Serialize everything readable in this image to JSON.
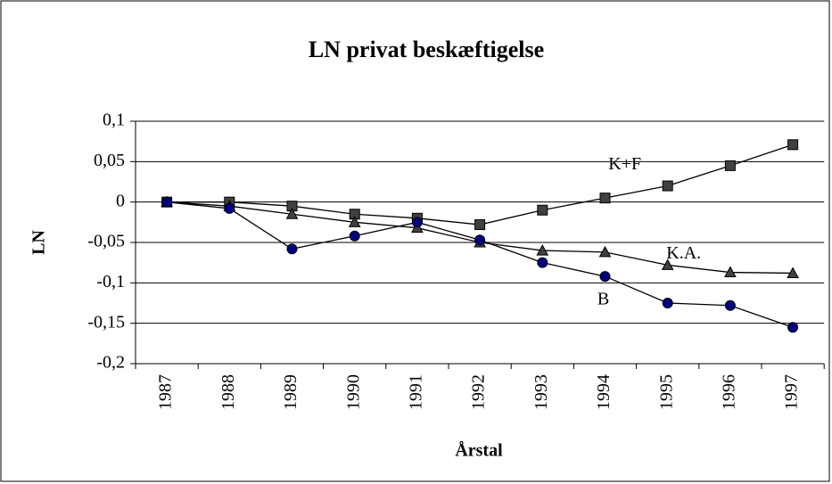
{
  "chart_data": {
    "type": "line",
    "title": "LN  privat beskæftigelse",
    "x_label": "Årstal",
    "y_label": "LN",
    "categories": [
      "1987",
      "1988",
      "1989",
      "1990",
      "1991",
      "1992",
      "1993",
      "1994",
      "1995",
      "1996",
      "1997"
    ],
    "series": [
      {
        "name": "K+F",
        "color": "#404040",
        "marker": "square",
        "values": [
          0,
          0,
          -0.005,
          -0.015,
          -0.02,
          -0.028,
          -0.01,
          0.005,
          0.02,
          0.045,
          0.071
        ]
      },
      {
        "name": "K.A.",
        "color": "#404040",
        "marker": "triangle",
        "values": [
          0,
          -0.005,
          -0.015,
          -0.025,
          -0.032,
          -0.05,
          -0.06,
          -0.062,
          -0.078,
          -0.087,
          -0.088
        ]
      },
      {
        "name": "B",
        "color": "#000080",
        "marker": "circle",
        "values": [
          0,
          -0.008,
          -0.058,
          -0.042,
          -0.025,
          -0.047,
          -0.075,
          -0.092,
          -0.125,
          -0.128,
          -0.155
        ]
      }
    ],
    "ylim": [
      -0.2,
      0.1
    ],
    "yticks": [
      {
        "value": -0.2,
        "label": "-0,2"
      },
      {
        "value": -0.15,
        "label": "-0,15"
      },
      {
        "value": -0.1,
        "label": "-0,1"
      },
      {
        "value": -0.05,
        "label": "-0,05"
      },
      0,
      {
        "value": 0.05,
        "label": "0,05"
      },
      {
        "value": 0.1,
        "label": "0,1"
      }
    ],
    "grid": true
  }
}
